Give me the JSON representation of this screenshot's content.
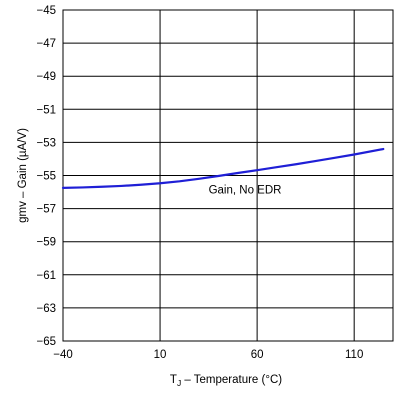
{
  "chart_data": {
    "type": "line",
    "title": "",
    "xlabel": {
      "main": "T",
      "sub": "J",
      "rest": " – Temperature (°C)"
    },
    "ylabel": "gmv – Gain (µA/V)",
    "xlim": [
      -40,
      130
    ],
    "ylim": [
      -65,
      -45
    ],
    "xticks": [
      -40,
      10,
      60,
      110
    ],
    "xtick_labels": [
      "−40",
      "10",
      "60",
      "110"
    ],
    "yticks": [
      -45,
      -47,
      -49,
      -51,
      -53,
      -55,
      -57,
      -59,
      -61,
      -63,
      -65
    ],
    "ytick_labels": [
      "−45",
      "−47",
      "−49",
      "−51",
      "−53",
      "−55",
      "−57",
      "−59",
      "−61",
      "−63",
      "−65"
    ],
    "grid": true,
    "series": [
      {
        "name": "Gain, No EDR",
        "color": "#1f1fd6",
        "x": [
          -40,
          -30,
          -20,
          -10,
          0,
          10,
          20,
          30,
          40,
          50,
          60,
          70,
          80,
          90,
          100,
          110,
          125
        ],
        "y": [
          -55.75,
          -55.72,
          -55.68,
          -55.63,
          -55.56,
          -55.47,
          -55.35,
          -55.2,
          -55.03,
          -54.85,
          -54.68,
          -54.5,
          -54.32,
          -54.13,
          -53.93,
          -53.73,
          -53.4
        ]
      }
    ],
    "annotations": [
      {
        "text": "Gain, No EDR",
        "x": 35,
        "y": -56.1
      }
    ]
  }
}
